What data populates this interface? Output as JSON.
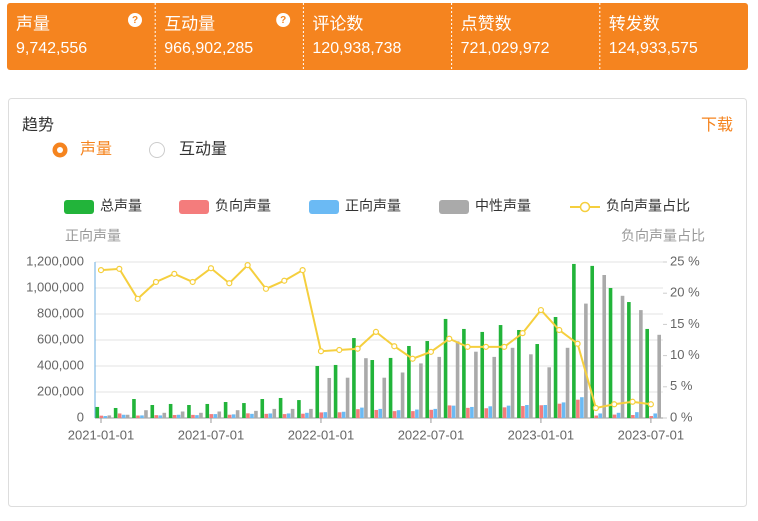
{
  "stats": [
    {
      "label": "声量",
      "value": "9,742,556"
    },
    {
      "label": "互动量",
      "value": "966,902,285"
    },
    {
      "label": "评论数",
      "value": "120,938,738"
    },
    {
      "label": "点赞数",
      "value": "721,029,972"
    },
    {
      "label": "转发数",
      "value": "124,933,575"
    }
  ],
  "panel": {
    "title": "趋势",
    "tabs": [
      "声量",
      "互动量"
    ],
    "download": "下载"
  },
  "chart_data": {
    "type": "bar",
    "y_label": "正向声量",
    "y2_label": "负向声量占比",
    "categories": [
      "2021-01-01",
      null,
      null,
      null,
      null,
      null,
      "2021-07-01",
      null,
      null,
      null,
      null,
      null,
      "2022-01-01",
      null,
      null,
      null,
      null,
      null,
      "2022-07-01",
      null,
      null,
      null,
      null,
      null,
      "2023-01-01",
      null,
      null,
      null,
      null,
      null,
      "2023-07-01"
    ],
    "series": [
      {
        "name": "总声量",
        "color": "#22b43a",
        "values": [
          85000,
          77000,
          146000,
          100000,
          108000,
          100000,
          108000,
          123000,
          115000,
          146000,
          154000,
          138000,
          400000,
          408000,
          615000,
          446000,
          462000,
          554000,
          592000,
          762000,
          685000,
          662000,
          715000,
          677000,
          569000,
          777000,
          1185000,
          1170000,
          1000000,
          892000,
          685000
        ]
      },
      {
        "name": "负向声量",
        "color": "#f47c7c",
        "values": [
          18000,
          35000,
          19000,
          22000,
          23000,
          24000,
          30000,
          25000,
          36000,
          32000,
          30000,
          33000,
          43000,
          44000,
          68000,
          62000,
          53000,
          53000,
          63000,
          97000,
          78000,
          75000,
          82000,
          92000,
          98000,
          110000,
          141000,
          19000,
          26000,
          23000,
          15000
        ]
      },
      {
        "name": "正向声量",
        "color": "#6bbaf4",
        "values": [
          15000,
          25000,
          20000,
          20000,
          25000,
          22000,
          30000,
          28000,
          32000,
          35000,
          35000,
          40000,
          45000,
          48000,
          80000,
          70000,
          60000,
          65000,
          70000,
          95000,
          85000,
          90000,
          95000,
          100000,
          100000,
          120000,
          160000,
          35000,
          40000,
          45000,
          35000
        ]
      },
      {
        "name": "中性声量",
        "color": "#aaaaaa",
        "values": [
          20000,
          25000,
          60000,
          40000,
          50000,
          40000,
          50000,
          60000,
          55000,
          70000,
          70000,
          70000,
          308000,
          310000,
          460000,
          310000,
          350000,
          420000,
          470000,
          590000,
          510000,
          470000,
          540000,
          490000,
          390000,
          540000,
          880000,
          1100000,
          940000,
          830000,
          640000
        ]
      },
      {
        "name": "负向声量占比",
        "color": "#f5cf3e",
        "type": "line",
        "axis": "y2",
        "values": [
          23.7,
          23.9,
          19.1,
          21.8,
          23.1,
          21.8,
          24.0,
          21.6,
          24.5,
          20.7,
          22.0,
          23.7,
          10.7,
          10.9,
          11.1,
          13.8,
          11.5,
          9.5,
          10.6,
          12.7,
          11.4,
          11.4,
          11.4,
          13.6,
          17.3,
          14.1,
          11.9,
          1.6,
          2.2,
          2.6,
          2.2
        ]
      }
    ],
    "ylim": [
      0,
      1200000
    ],
    "yticks": [
      0,
      {
        "value": 200000,
        "label": "200,000"
      },
      {
        "value": 400000,
        "label": "400,000"
      },
      {
        "value": 600000,
        "label": "600,000"
      },
      {
        "value": 800000,
        "label": "800,000"
      },
      {
        "value": 1000000,
        "label": "1,000,000"
      },
      {
        "value": 1200000,
        "label": "1,200,000"
      }
    ],
    "y2lim": [
      0,
      25
    ],
    "y2ticks": [
      {
        "value": 0,
        "label": "0 %"
      },
      {
        "value": 5,
        "label": "5 %"
      },
      {
        "value": 10,
        "label": "10 %"
      },
      {
        "value": 15,
        "label": "15 %"
      },
      {
        "value": 20,
        "label": "20 %"
      },
      {
        "value": 25,
        "label": "25 %"
      }
    ],
    "grid": true
  }
}
